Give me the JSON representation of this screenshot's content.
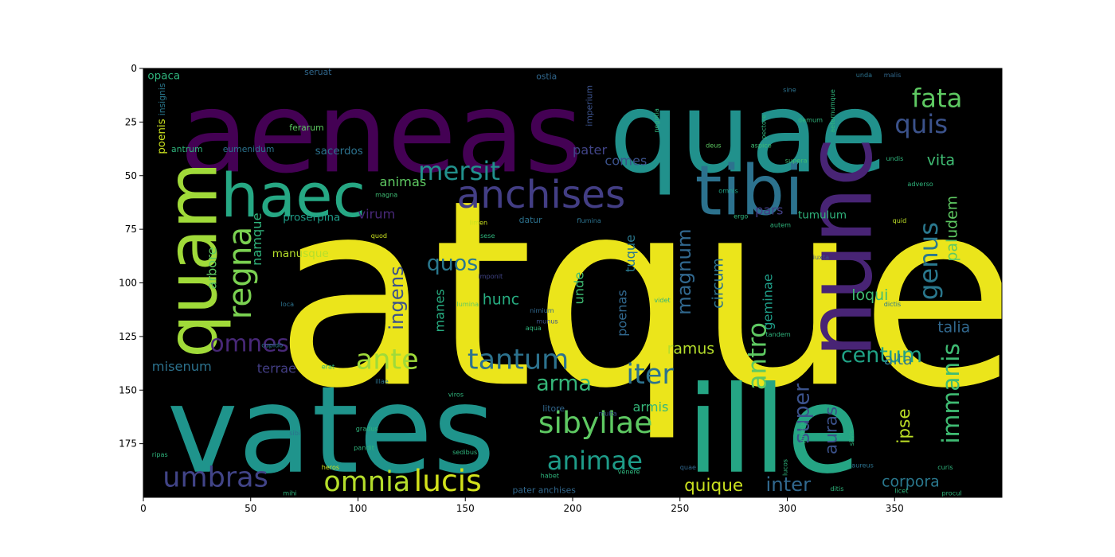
{
  "chart_data": {
    "type": "wordcloud",
    "title": "",
    "xlabel": "",
    "ylabel": "",
    "xlim": [
      0,
      400
    ],
    "ylim": [
      200,
      0
    ],
    "xticks": [
      0,
      50,
      100,
      150,
      200,
      250,
      300,
      350
    ],
    "yticks": [
      0,
      25,
      50,
      75,
      100,
      125,
      150,
      175
    ],
    "background": "#000000",
    "colormap": "viridis",
    "words": [
      {
        "text": "atque",
        "x": 61,
        "y": 147,
        "size": 120,
        "color": "#ebe51b"
      },
      {
        "text": "aeneas",
        "x": 17,
        "y": 48,
        "size": 52,
        "color": "#440154"
      },
      {
        "text": "quae",
        "x": 217,
        "y": 48,
        "size": 52,
        "color": "#21918c"
      },
      {
        "text": "vates",
        "x": 11,
        "y": 188,
        "size": 56,
        "color": "#1f948c"
      },
      {
        "text": "ille",
        "x": 253,
        "y": 188,
        "size": 56,
        "color": "#25a584"
      },
      {
        "text": "nunc",
        "x": 339,
        "y": 135,
        "size": 42,
        "color": "#482475",
        "rotate": -90
      },
      {
        "text": "haec",
        "x": 36,
        "y": 69,
        "size": 28,
        "color": "#26a884"
      },
      {
        "text": "tibi",
        "x": 257,
        "y": 68,
        "size": 32,
        "color": "#2c728e"
      },
      {
        "text": "quam",
        "x": 34,
        "y": 135,
        "size": 32,
        "color": "#a0da39",
        "rotate": -90
      },
      {
        "text": "anchises",
        "x": 146,
        "y": 65,
        "size": 18,
        "color": "#433e85"
      },
      {
        "text": "fata",
        "x": 358,
        "y": 18,
        "size": 12,
        "color": "#5ec962"
      },
      {
        "text": "quis",
        "x": 350,
        "y": 30,
        "size": 12,
        "color": "#3b528b"
      },
      {
        "text": "mersit",
        "x": 128,
        "y": 52,
        "size": 12,
        "color": "#21918c"
      },
      {
        "text": "regna",
        "x": 50,
        "y": 117,
        "size": 15,
        "color": "#7ad151",
        "rotate": -90
      },
      {
        "text": "genus",
        "x": 370,
        "y": 108,
        "size": 12,
        "color": "#2a788e",
        "rotate": -90
      },
      {
        "text": "omnes",
        "x": 31,
        "y": 132,
        "size": 11,
        "color": "#482878"
      },
      {
        "text": "ante",
        "x": 99,
        "y": 140,
        "size": 13,
        "color": "#9fda3a"
      },
      {
        "text": "tantum",
        "x": 151,
        "y": 140,
        "size": 13,
        "color": "#2c728e"
      },
      {
        "text": "iter",
        "x": 225,
        "y": 147,
        "size": 13,
        "color": "#2c728e"
      },
      {
        "text": "sibyllae",
        "x": 184,
        "y": 170,
        "size": 14,
        "color": "#5ec962"
      },
      {
        "text": "animae",
        "x": 188,
        "y": 187,
        "size": 12,
        "color": "#1e9c89"
      },
      {
        "text": "omnia",
        "x": 84,
        "y": 197,
        "size": 13,
        "color": "#b5de2b"
      },
      {
        "text": "lucis",
        "x": 126,
        "y": 197,
        "size": 14,
        "color": "#d2e21b"
      },
      {
        "text": "umbras",
        "x": 9,
        "y": 195,
        "size": 13,
        "color": "#414487"
      },
      {
        "text": "antro",
        "x": 290,
        "y": 150,
        "size": 12,
        "color": "#5ec962",
        "rotate": -90
      },
      {
        "text": "immanis",
        "x": 380,
        "y": 175,
        "size": 11,
        "color": "#3fbc73",
        "rotate": -90
      },
      {
        "text": "centum",
        "x": 325,
        "y": 137,
        "size": 10,
        "color": "#20a386"
      },
      {
        "text": "quos",
        "x": 132,
        "y": 94,
        "size": 10,
        "color": "#2a788e"
      },
      {
        "text": "ingens",
        "x": 121,
        "y": 122,
        "size": 9,
        "color": "#3b528b",
        "rotate": -90
      },
      {
        "text": "magnum",
        "x": 255,
        "y": 115,
        "size": 9,
        "color": "#31688e",
        "rotate": -90
      },
      {
        "text": "arma",
        "x": 183,
        "y": 150,
        "size": 10,
        "color": "#35b779"
      },
      {
        "text": "super",
        "x": 310,
        "y": 175,
        "size": 10,
        "color": "#3b528b",
        "rotate": -90
      },
      {
        "text": "inter",
        "x": 290,
        "y": 197,
        "size": 9,
        "color": "#31688e"
      },
      {
        "text": "quique",
        "x": 252,
        "y": 197,
        "size": 8,
        "color": "#cae11f"
      },
      {
        "text": "corpora",
        "x": 344,
        "y": 195,
        "size": 7,
        "color": "#2a788e"
      },
      {
        "text": "ipse",
        "x": 357,
        "y": 175,
        "size": 8,
        "color": "#bddf26",
        "rotate": -90
      },
      {
        "text": "auras",
        "x": 323,
        "y": 180,
        "size": 8,
        "color": "#3b528b",
        "rotate": -90
      },
      {
        "text": "paludem",
        "x": 379,
        "y": 90,
        "size": 7,
        "color": "#5ec962",
        "rotate": -90
      },
      {
        "text": "vita",
        "x": 365,
        "y": 45,
        "size": 7,
        "color": "#3fbc73"
      },
      {
        "text": "talia",
        "x": 370,
        "y": 123,
        "size": 7,
        "color": "#31688e"
      },
      {
        "text": "alta",
        "x": 345,
        "y": 138,
        "size": 7,
        "color": "#2a788e"
      },
      {
        "text": "loqui",
        "x": 330,
        "y": 108,
        "size": 7,
        "color": "#3fbc73"
      },
      {
        "text": "circum",
        "x": 270,
        "y": 112,
        "size": 7,
        "color": "#2c728e",
        "rotate": -90
      },
      {
        "text": "geminae",
        "x": 293,
        "y": 122,
        "size": 6,
        "color": "#1f9e89",
        "rotate": -90
      },
      {
        "text": "ramus",
        "x": 244,
        "y": 133,
        "size": 7,
        "color": "#b5de2b"
      },
      {
        "text": "armis",
        "x": 228,
        "y": 160,
        "size": 6,
        "color": "#35b779"
      },
      {
        "text": "tuque",
        "x": 229,
        "y": 95,
        "size": 6,
        "color": "#2a788e",
        "rotate": -90
      },
      {
        "text": "pars",
        "x": 285,
        "y": 68,
        "size": 6,
        "color": "#433e85"
      },
      {
        "text": "tumulum",
        "x": 305,
        "y": 70,
        "size": 5,
        "color": "#2fb47c"
      },
      {
        "text": "comes",
        "x": 215,
        "y": 45,
        "size": 6,
        "color": "#3b528b"
      },
      {
        "text": "pater",
        "x": 200,
        "y": 40,
        "size": 6,
        "color": "#414487"
      },
      {
        "text": "hunc",
        "x": 158,
        "y": 110,
        "size": 7,
        "color": "#27ad81"
      },
      {
        "text": "unde",
        "x": 205,
        "y": 110,
        "size": 6,
        "color": "#3fbc73",
        "rotate": -90
      },
      {
        "text": "poenas",
        "x": 225,
        "y": 125,
        "size": 6,
        "color": "#31688e",
        "rotate": -90
      },
      {
        "text": "manes",
        "x": 140,
        "y": 123,
        "size": 6,
        "color": "#27ad81",
        "rotate": -90
      },
      {
        "text": "virum",
        "x": 100,
        "y": 70,
        "size": 6,
        "color": "#482878"
      },
      {
        "text": "animas",
        "x": 110,
        "y": 55,
        "size": 6,
        "color": "#5ec962"
      },
      {
        "text": "sacerdos",
        "x": 80,
        "y": 40,
        "size": 5,
        "color": "#2c728e"
      },
      {
        "text": "terrae",
        "x": 53,
        "y": 142,
        "size": 6,
        "color": "#433e85"
      },
      {
        "text": "misenum",
        "x": 4,
        "y": 141,
        "size": 6,
        "color": "#2c728e"
      },
      {
        "text": "arbore",
        "x": 34,
        "y": 103,
        "size": 6,
        "color": "#5ec962",
        "rotate": -90
      },
      {
        "text": "poenis",
        "x": 10,
        "y": 40,
        "size": 5,
        "color": "#cae11f",
        "rotate": -90
      },
      {
        "text": "namque",
        "x": 55,
        "y": 92,
        "size": 6,
        "color": "#2fb47c",
        "rotate": -90
      },
      {
        "text": "manusque",
        "x": 60,
        "y": 88,
        "size": 5,
        "color": "#b5de2b"
      },
      {
        "text": "proserpina",
        "x": 65,
        "y": 71,
        "size": 5,
        "color": "#1f9e89"
      },
      {
        "text": "eumenidum",
        "x": 37,
        "y": 39,
        "size": 4,
        "color": "#2c728e"
      },
      {
        "text": "antrum",
        "x": 13,
        "y": 39,
        "size": 4,
        "color": "#2fb47c"
      },
      {
        "text": "ferarum",
        "x": 68,
        "y": 29,
        "size": 4,
        "color": "#5ec962"
      },
      {
        "text": "opaca",
        "x": 2,
        "y": 5,
        "size": 5,
        "color": "#2fb47c"
      },
      {
        "text": "insignis",
        "x": 10,
        "y": 22,
        "size": 4,
        "color": "#2a788e",
        "rotate": -90
      },
      {
        "text": "seruat",
        "x": 75,
        "y": 3,
        "size": 4,
        "color": "#31688e"
      },
      {
        "text": "ostia",
        "x": 183,
        "y": 5,
        "size": 4,
        "color": "#31688e"
      },
      {
        "text": "imperium",
        "x": 209,
        "y": 27,
        "size": 4,
        "color": "#3b528b",
        "rotate": -90
      },
      {
        "text": "unda",
        "x": 332,
        "y": 4,
        "size": 3,
        "color": "#2c728e"
      },
      {
        "text": "malis",
        "x": 345,
        "y": 4,
        "size": 3,
        "color": "#31688e"
      },
      {
        "text": "sine",
        "x": 298,
        "y": 11,
        "size": 3,
        "color": "#2c728e"
      },
      {
        "text": "pectore",
        "x": 290,
        "y": 33,
        "size": 3,
        "color": "#2fb47c",
        "rotate": -90
      },
      {
        "text": "demum",
        "x": 305,
        "y": 25,
        "size": 3,
        "color": "#2fb47c"
      },
      {
        "text": "aspice",
        "x": 283,
        "y": 37,
        "size": 3,
        "color": "#3fbc73"
      },
      {
        "text": "deus",
        "x": 262,
        "y": 37,
        "size": 3,
        "color": "#5ec962"
      },
      {
        "text": "supera",
        "x": 299,
        "y": 44,
        "size": 3,
        "color": "#3fbc73"
      },
      {
        "text": "omnis",
        "x": 268,
        "y": 58,
        "size": 3,
        "color": "#20a386"
      },
      {
        "text": "ergo",
        "x": 275,
        "y": 70,
        "size": 3,
        "color": "#2fb47c"
      },
      {
        "text": "autem",
        "x": 292,
        "y": 74,
        "size": 3,
        "color": "#2fb47c"
      },
      {
        "text": "quid",
        "x": 349,
        "y": 72,
        "size": 3,
        "color": "#bddf26"
      },
      {
        "text": "iuxta",
        "x": 312,
        "y": 89,
        "size": 3,
        "color": "#3b528b"
      },
      {
        "text": "dictis",
        "x": 345,
        "y": 111,
        "size": 3,
        "color": "#2a788e"
      },
      {
        "text": "tandem",
        "x": 290,
        "y": 125,
        "size": 3,
        "color": "#2fb47c"
      },
      {
        "text": "videt",
        "x": 238,
        "y": 109,
        "size": 3,
        "color": "#2fb47c"
      },
      {
        "text": "nimium",
        "x": 180,
        "y": 114,
        "size": 3,
        "color": "#31688e"
      },
      {
        "text": "munus",
        "x": 183,
        "y": 119,
        "size": 3,
        "color": "#3b528b"
      },
      {
        "text": "aqua",
        "x": 178,
        "y": 122,
        "size": 3,
        "color": "#2fb47c"
      },
      {
        "text": "lumina",
        "x": 146,
        "y": 111,
        "size": 3,
        "color": "#5ec962"
      },
      {
        "text": "imponit",
        "x": 156,
        "y": 98,
        "size": 3,
        "color": "#414487"
      },
      {
        "text": "sese",
        "x": 157,
        "y": 79,
        "size": 3,
        "color": "#2fb47c"
      },
      {
        "text": "quod",
        "x": 106,
        "y": 79,
        "size": 3,
        "color": "#cae11f"
      },
      {
        "text": "limen",
        "x": 152,
        "y": 73,
        "size": 3,
        "color": "#cae11f"
      },
      {
        "text": "datur",
        "x": 175,
        "y": 72,
        "size": 4,
        "color": "#2c728e"
      },
      {
        "text": "flumina",
        "x": 202,
        "y": 72,
        "size": 3,
        "color": "#2c728e"
      },
      {
        "text": "magna",
        "x": 108,
        "y": 60,
        "size": 3,
        "color": "#3fbc73"
      },
      {
        "text": "loca",
        "x": 64,
        "y": 111,
        "size": 3,
        "color": "#2c728e"
      },
      {
        "text": "cupido",
        "x": 55,
        "y": 130,
        "size": 3,
        "color": "#2a788e"
      },
      {
        "text": "erat",
        "x": 83,
        "y": 140,
        "size": 3,
        "color": "#2fb47c"
      },
      {
        "text": "illae",
        "x": 108,
        "y": 147,
        "size": 3,
        "color": "#2c728e"
      },
      {
        "text": "viros",
        "x": 142,
        "y": 153,
        "size": 3,
        "color": "#2fb47c"
      },
      {
        "text": "litore",
        "x": 186,
        "y": 160,
        "size": 4,
        "color": "#31688e"
      },
      {
        "text": "multa",
        "x": 212,
        "y": 162,
        "size": 3,
        "color": "#3b528b"
      },
      {
        "text": "gradus",
        "x": 99,
        "y": 169,
        "size": 3,
        "color": "#2fb47c"
      },
      {
        "text": "pandit",
        "x": 98,
        "y": 178,
        "size": 3,
        "color": "#2fb47c"
      },
      {
        "text": "sedibus",
        "x": 144,
        "y": 180,
        "size": 3,
        "color": "#2fb47c"
      },
      {
        "text": "habet",
        "x": 185,
        "y": 191,
        "size": 3,
        "color": "#2fb47c"
      },
      {
        "text": "venere",
        "x": 221,
        "y": 189,
        "size": 3,
        "color": "#2fb47c"
      },
      {
        "text": "quae",
        "x": 250,
        "y": 187,
        "size": 3,
        "color": "#31688e"
      },
      {
        "text": "heros",
        "x": 83,
        "y": 187,
        "size": 3,
        "color": "#cae11f"
      },
      {
        "text": "ripas",
        "x": 4,
        "y": 181,
        "size": 3,
        "color": "#2fb47c"
      },
      {
        "text": "mihi",
        "x": 65,
        "y": 199,
        "size": 3,
        "color": "#2fb47c"
      },
      {
        "text": "sibi",
        "x": 68,
        "y": 171,
        "size": 3,
        "color": "#2c728e"
      },
      {
        "text": "pater anchises",
        "x": 172,
        "y": 198,
        "size": 4,
        "color": "#31688e"
      },
      {
        "text": "ditis",
        "x": 320,
        "y": 197,
        "size": 3,
        "color": "#2fb47c"
      },
      {
        "text": "curis",
        "x": 370,
        "y": 187,
        "size": 3,
        "color": "#2fb47c"
      },
      {
        "text": "aureus",
        "x": 330,
        "y": 186,
        "size": 3,
        "color": "#2c728e"
      },
      {
        "text": "procul",
        "x": 372,
        "y": 199,
        "size": 3,
        "color": "#2fb47c"
      },
      {
        "text": "licet",
        "x": 350,
        "y": 198,
        "size": 3,
        "color": "#2fb47c"
      },
      {
        "text": "silvis",
        "x": 331,
        "y": 176,
        "size": 3,
        "color": "#2fb47c",
        "rotate": -90
      },
      {
        "text": "phoebi",
        "x": 308,
        "y": 175,
        "size": 3,
        "color": "#2fb47c",
        "rotate": -90
      },
      {
        "text": "lucos",
        "x": 300,
        "y": 190,
        "size": 3,
        "color": "#2fb47c",
        "rotate": -90
      },
      {
        "text": "adverso",
        "x": 356,
        "y": 55,
        "size": 3,
        "color": "#2fb47c"
      },
      {
        "text": "undis",
        "x": 346,
        "y": 43,
        "size": 3,
        "color": "#2fb47c"
      },
      {
        "text": "aeternumque",
        "x": 322,
        "y": 30,
        "size": 3,
        "color": "#2fb47c",
        "rotate": -90
      },
      {
        "text": "negotia",
        "x": 240,
        "y": 30,
        "size": 3,
        "color": "#2fb47c",
        "rotate": -90
      }
    ]
  }
}
